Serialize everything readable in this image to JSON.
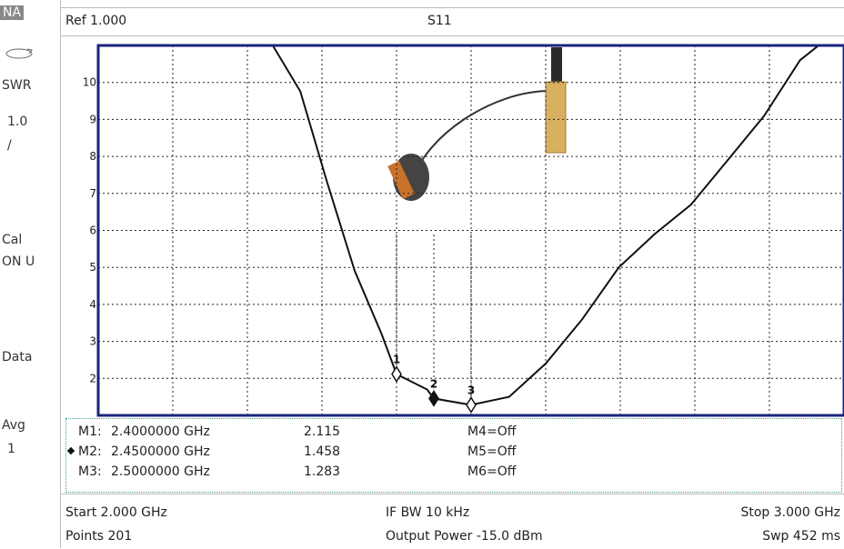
{
  "sidebar": {
    "mode": "NA",
    "items": [
      "SWR",
      "1.0",
      "/",
      "Cal",
      "ON U",
      "Data",
      "Avg",
      "1"
    ]
  },
  "header": {
    "ref": "Ref 1.000",
    "trace": "S11"
  },
  "chart_data": {
    "type": "line",
    "color": "#111111",
    "grid": true,
    "x": [
      2.0,
      2.234,
      2.271,
      2.307,
      2.344,
      2.38,
      2.4,
      2.441,
      2.45,
      2.5,
      2.551,
      2.6,
      2.649,
      2.698,
      2.746,
      2.795,
      2.844,
      2.893,
      2.941,
      2.966,
      3.0
    ],
    "values": [
      11,
      11,
      9.76,
      7.3,
      4.9,
      3.2,
      2.115,
      1.7,
      1.458,
      1.283,
      1.5,
      2.4,
      3.6,
      5.0,
      5.9,
      6.7,
      7.9,
      9.1,
      10.6,
      11,
      11
    ],
    "xlim": [
      2.0,
      3.0
    ],
    "xticks": [
      2.1,
      2.2,
      2.3,
      2.4,
      2.5,
      2.6,
      2.7,
      2.8,
      2.9
    ],
    "ylim": [
      1,
      11
    ],
    "yticks": [
      2,
      3,
      4,
      5,
      6,
      7,
      8,
      9,
      10
    ],
    "markers": [
      {
        "name": "M1:",
        "label": "1",
        "x": 2.4,
        "freq": "2.4000000 GHz",
        "value": 2.115
      },
      {
        "name": "M2:",
        "label": "2",
        "x": 2.45,
        "freq": "2.4500000 GHz",
        "value": 1.458
      },
      {
        "name": "M3:",
        "label": "3",
        "x": 2.5,
        "freq": "2.5000000 GHz",
        "value": 1.283
      }
    ],
    "markers_off": [
      "M4=Off",
      "M5=Off",
      "M6=Off"
    ]
  },
  "footer": {
    "start": "Start 2.000 GHz",
    "ifbw": "IF BW 10 kHz",
    "stop": "Stop 3.000 GHz",
    "points": "Points 201",
    "power": "Output Power -15.0 dBm",
    "sweep": "Swp 452 ms"
  }
}
